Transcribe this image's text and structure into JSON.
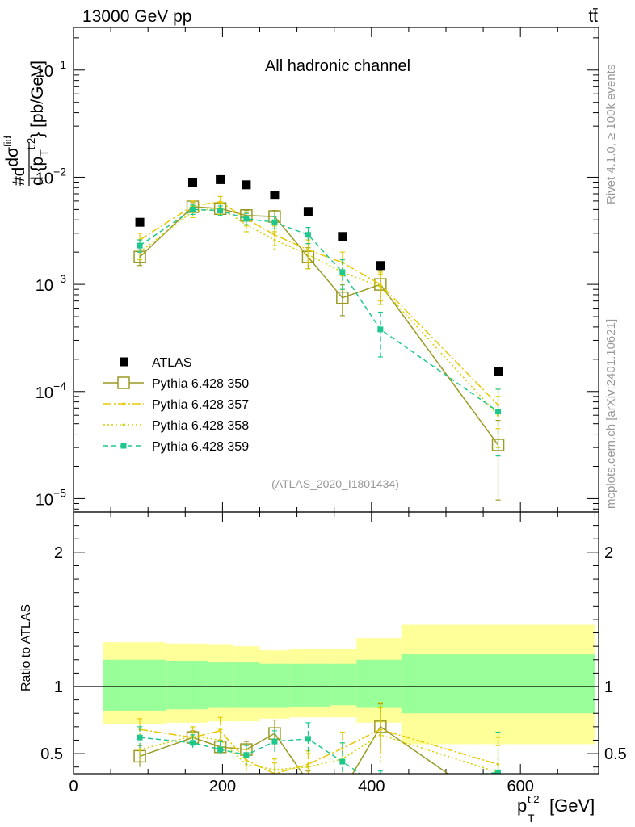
{
  "header": {
    "left": "13000 GeV pp",
    "right": "tt̄"
  },
  "side_labels": {
    "rivet": "Rivet 4.1.0, ≥ 100k events",
    "mcplots": "mcplots.cern.ch [arXiv:2401.10621]"
  },
  "chart_data": {
    "type": "line",
    "title": "All hadronic channel",
    "analysis_id": "(ATLAS_2020_I1801434)",
    "xlabel_main": "p",
    "xlabel_sub": "T",
    "xlabel_sup": "t,2",
    "xlabel_unit": "[GeV]",
    "ylabel_main": "#dσ^fid / d{p_T^t,2} [pb/GeV]",
    "ylabel_parts": {
      "a": "#d",
      "b": "dσ",
      "c": "fid",
      "d": "d {p",
      "e": "T",
      "f": "t,2",
      "g": "} [pb/GeV]"
    },
    "ylabel_ratio": "Ratio to ATLAS",
    "xlim": [
      0,
      705
    ],
    "ylim": [
      7.5e-06,
      0.25
    ],
    "ylim_ratio": [
      0.35,
      2.3
    ],
    "log_y": true,
    "x_ticks": [
      0,
      200,
      400,
      600
    ],
    "x_tick_labels": [
      "0",
      "200",
      "400",
      "600"
    ],
    "y_ticks": [
      1e-05,
      0.0001,
      0.001,
      0.01,
      0.1
    ],
    "y_tick_labels": [
      {
        "base": "10",
        "exp": "−5"
      },
      {
        "base": "10",
        "exp": "−4"
      },
      {
        "base": "10",
        "exp": "−3"
      },
      {
        "base": "10",
        "exp": "−2"
      },
      {
        "base": "10",
        "exp": "−1"
      }
    ],
    "ratio_ticks": [
      0.5,
      1,
      2
    ],
    "ratio_tick_labels": [
      "0.5",
      "1",
      "2"
    ],
    "bins": [
      [
        40,
        125
      ],
      [
        125,
        180
      ],
      [
        180,
        215
      ],
      [
        215,
        250
      ],
      [
        250,
        290
      ],
      [
        290,
        345
      ],
      [
        345,
        380
      ],
      [
        380,
        440
      ],
      [
        440,
        700
      ]
    ],
    "bin_centers": [
      89,
      160,
      197,
      232,
      270,
      315,
      361,
      412,
      570
    ],
    "ratio_band_inner": [
      [
        0.82,
        1.2
      ],
      [
        0.83,
        1.19
      ],
      [
        0.84,
        1.18
      ],
      [
        0.84,
        1.18
      ],
      [
        0.84,
        1.17
      ],
      [
        0.85,
        1.17
      ],
      [
        0.86,
        1.17
      ],
      [
        0.84,
        1.2
      ],
      [
        0.8,
        1.24
      ]
    ],
    "ratio_band_outer": [
      [
        0.72,
        1.33
      ],
      [
        0.73,
        1.32
      ],
      [
        0.74,
        1.31
      ],
      [
        0.74,
        1.3
      ],
      [
        0.76,
        1.27
      ],
      [
        0.77,
        1.28
      ],
      [
        0.77,
        1.28
      ],
      [
        0.73,
        1.36
      ],
      [
        0.57,
        1.46
      ]
    ],
    "series": [
      {
        "name": "ATLAS",
        "style": "data",
        "color": "#000000",
        "x": [
          89,
          160,
          197,
          232,
          270,
          315,
          361,
          412,
          570
        ],
        "y": [
          0.0038,
          0.0089,
          0.0095,
          0.0085,
          0.0068,
          0.0048,
          0.0028,
          0.0015,
          0.000155
        ],
        "ratio": null
      },
      {
        "name": "Pythia 6.428 350",
        "style": "open-square-solid",
        "color": "#9a9a24",
        "x": [
          89,
          160,
          197,
          232,
          270,
          315,
          361,
          412,
          570
        ],
        "y": [
          0.0018,
          0.0053,
          0.0051,
          0.0044,
          0.0043,
          0.0018,
          0.00075,
          0.001,
          3.17e-05
        ],
        "yerr": [
          0.0003,
          0.0005,
          0.0006,
          0.0005,
          0.0006,
          0.0004,
          0.00024,
          0.00035,
          2.2e-05
        ],
        "ratio": [
          0.48,
          0.62,
          0.55,
          0.53,
          0.65,
          0.29,
          0.22,
          0.7,
          0.09
        ],
        "ratio_err": [
          0.08,
          0.05,
          0.05,
          0.06,
          0.1,
          0.08,
          0.08,
          0.17,
          0.09
        ]
      },
      {
        "name": "Pythia 6.428 357",
        "style": "dashdot",
        "color": "#e8c800",
        "x": [
          89,
          160,
          197,
          232,
          270,
          315,
          361,
          412,
          570
        ],
        "y": [
          0.0026,
          0.0054,
          0.0059,
          0.0041,
          0.0029,
          0.0021,
          0.0016,
          0.001,
          7.5e-05
        ],
        "yerr": [
          0.0004,
          0.0006,
          0.0007,
          0.0006,
          0.0006,
          0.0005,
          0.0004,
          0.0003,
          3e-05
        ],
        "ratio": [
          0.68,
          0.62,
          0.67,
          0.45,
          0.35,
          0.42,
          0.54,
          0.68,
          0.42
        ],
        "ratio_err": [
          0.08,
          0.07,
          0.1,
          0.08,
          0.08,
          0.1,
          0.12,
          0.2,
          0.2
        ]
      },
      {
        "name": "Pythia 6.428 358",
        "style": "dotted",
        "color": "#d2d200",
        "x": [
          89,
          160,
          197,
          232,
          270,
          315,
          361,
          412,
          570
        ],
        "y": [
          0.002,
          0.0048,
          0.0052,
          0.0036,
          0.0026,
          0.0019,
          0.0013,
          0.00095,
          6e-05
        ],
        "yerr": [
          0.0003,
          0.0006,
          0.0007,
          0.0005,
          0.0005,
          0.0005,
          0.0004,
          0.0003,
          3e-05
        ],
        "ratio": [
          0.53,
          0.63,
          0.6,
          0.42,
          0.38,
          0.4,
          0.46,
          0.64,
          0.36
        ],
        "ratio_err": [
          0.08,
          0.07,
          0.08,
          0.08,
          0.08,
          0.1,
          0.12,
          0.2,
          0.2
        ]
      },
      {
        "name": "Pythia 6.428 359",
        "style": "dashed-square",
        "color": "#1ec88c",
        "x": [
          89,
          160,
          197,
          232,
          270,
          315,
          361,
          412,
          570
        ],
        "y": [
          0.0023,
          0.005,
          0.0049,
          0.0041,
          0.0038,
          0.0029,
          0.0013,
          0.00038,
          6.5e-05
        ],
        "yerr": [
          0.0003,
          0.0005,
          0.0005,
          0.0005,
          0.0005,
          0.0005,
          0.0004,
          0.00017,
          4e-05
        ],
        "ratio": [
          0.62,
          0.58,
          0.53,
          0.49,
          0.59,
          0.61,
          0.44,
          0.25,
          0.36
        ],
        "ratio_err": [
          0.08,
          0.06,
          0.06,
          0.07,
          0.08,
          0.12,
          0.14,
          0.12,
          0.3
        ]
      }
    ]
  }
}
